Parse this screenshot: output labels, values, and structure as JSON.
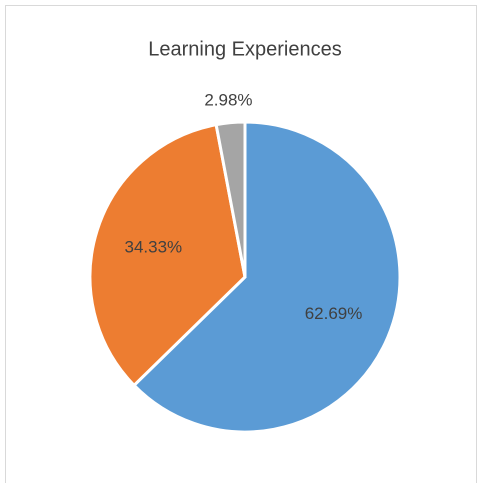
{
  "chart_data": {
    "type": "pie",
    "title": "Learning Experiences",
    "categories": [
      null,
      null,
      null
    ],
    "values": [
      62.69,
      34.33,
      2.98
    ],
    "value_labels": [
      "62.69%",
      "34.33%",
      "2.98%"
    ],
    "colors": [
      "#5b9bd5",
      "#ed7d31",
      "#a5a5a5"
    ]
  }
}
